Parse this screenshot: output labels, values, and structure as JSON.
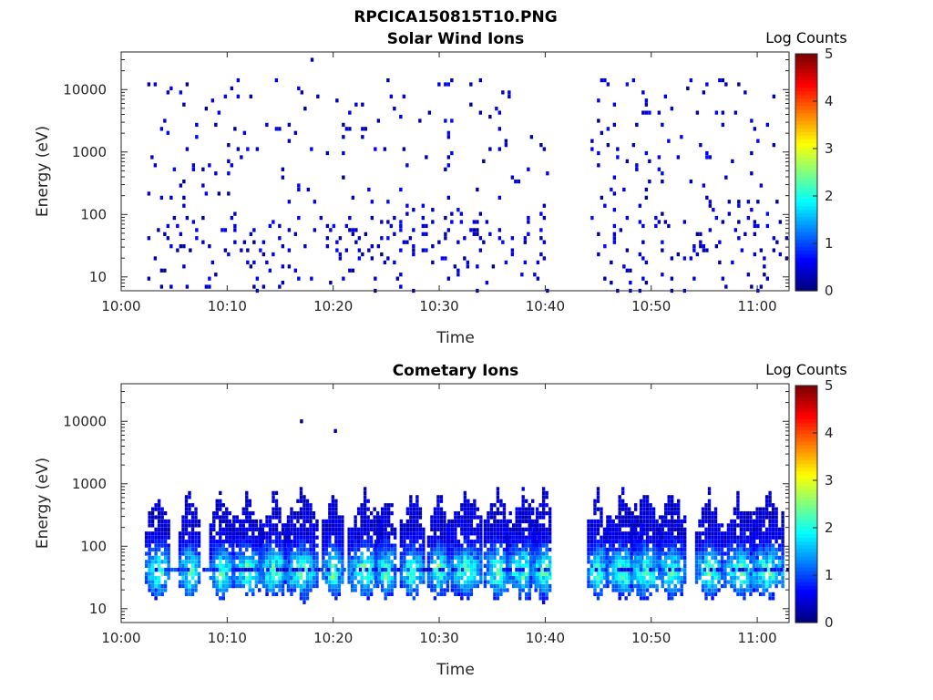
{
  "figure_title": "RPCICA150815T10.PNG",
  "colorbar": {
    "label": "Log Counts",
    "ticks": [
      "0",
      "1",
      "2",
      "3",
      "4",
      "5"
    ],
    "range": [
      0,
      5
    ],
    "colormap": "jet"
  },
  "chart_data": [
    {
      "type": "heatmap",
      "title": "Solar Wind Ions",
      "xlabel": "Time",
      "ylabel": "Energy (eV)",
      "x_ticks": [
        "10:00",
        "10:10",
        "10:20",
        "10:30",
        "10:40",
        "10:50",
        "11:00"
      ],
      "x_range": [
        "10:00",
        "11:03"
      ],
      "y_ticks": [
        "10",
        "100",
        "1000",
        "10000"
      ],
      "y_scale": "log",
      "y_range": [
        6,
        40000
      ],
      "data_gap": [
        "10:40.5",
        "10:44"
      ],
      "dominant_level": "0-1 (sparse dots across 6 eV to 20000 eV; streaks near 10-100 eV)",
      "coverage": "10:02 to 11:03"
    },
    {
      "type": "heatmap",
      "title": "Cometary Ions",
      "xlabel": "Time",
      "ylabel": "Energy (eV)",
      "x_ticks": [
        "10:00",
        "10:10",
        "10:20",
        "10:30",
        "10:40",
        "10:50",
        "11:00"
      ],
      "x_range": [
        "10:00",
        "11:03"
      ],
      "y_ticks": [
        "10",
        "100",
        "1000",
        "10000"
      ],
      "y_scale": "log",
      "y_range": [
        6,
        40000
      ],
      "data_gap": [
        "10:40.5",
        "10:44"
      ],
      "dominant_level": "0-2.5 (bursts between ~10 eV and ~500 eV, peak near 40 eV)",
      "burst_times": [
        "10:03.5",
        "10:06.5",
        "10:09.5",
        "10:12",
        "10:14.5",
        "10:17",
        "10:20",
        "10:23",
        "10:25",
        "10:27.5",
        "10:30",
        "10:32.5",
        "10:35.5",
        "10:38",
        "10:40",
        "10:45",
        "10:47.5",
        "10:49.5",
        "10:52",
        "10:55.5",
        "10:58.5",
        "11:01"
      ],
      "isolated_points": [
        [
          "10:17",
          10000
        ],
        [
          "10:20.2",
          7000
        ]
      ]
    }
  ]
}
